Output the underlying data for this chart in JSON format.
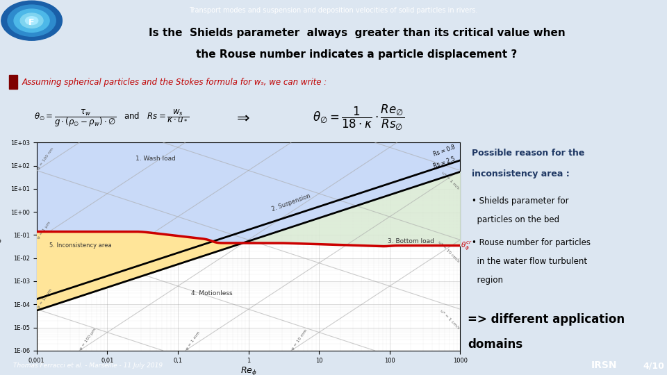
{
  "slide_bg": "#dce6f1",
  "header_bg": "#5b9bd5",
  "header_text": "Transport modes and suspension and deposition velocities of solid particles in rivers.",
  "header_text_color": "#ffffff",
  "footer_bg": "#5b9bd5",
  "footer_text": "Thomas Ferracci et al. - Marseille - 11 July 2019",
  "footer_text_color": "#ffffff",
  "footer_page": "4/10",
  "title_line1": "Is the  Shields parameter  always  greater than its critical value when",
  "title_line2": "the Rouse number indicates a particle displacement ?",
  "title_color": "#000000",
  "sub_text": "Assuming spherical particles and the Stokes formula for wₛ, we can write :",
  "sub_text_color": "#c00000",
  "right_title": "Possible reason for the\ninconsistency area :",
  "right_title_color": "#1f3864",
  "right_bullets": [
    "Shields parameter for\nparticles on the bed",
    "Rouse number for particles\nin the water flow turbulent\nregion"
  ],
  "right_footer": "=> different application\ndomains",
  "right_footer_color": "#000000",
  "wash_load_color": "#c9daf8",
  "bottom_load_color": "#d9ead3",
  "inconsistency_color": "#ffe599",
  "motionless_color": "#ffffff",
  "critical_line_color": "#cc0000",
  "ylim_min": -6,
  "ylim_max": 3,
  "xlim_min": -3,
  "xlim_max": 3,
  "ytick_labels": [
    "1E-06",
    "1E-05",
    "1E-04",
    "1E-03",
    "1E-02",
    "1E-01",
    "1E+00",
    "1E+01",
    "1E+02",
    "1E+03"
  ],
  "xtick_labels": [
    "0,001",
    "0,01",
    "0,1",
    "1",
    "10",
    "100",
    "1000"
  ]
}
